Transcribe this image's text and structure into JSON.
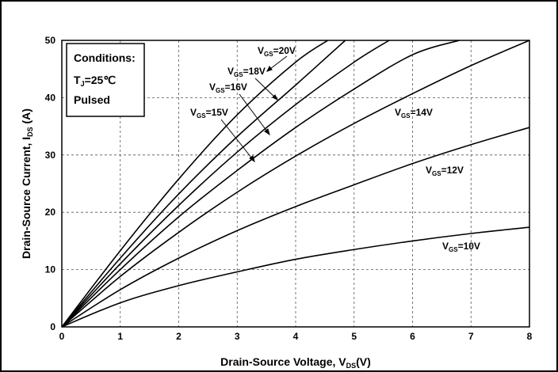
{
  "chart_data": {
    "type": "line",
    "title": "",
    "xlabel": "Drain-Source Voltage, V_DS(V)",
    "ylabel": "Drain-Source Current, I_DS (A)",
    "xlim": [
      0,
      8
    ],
    "ylim": [
      0,
      50
    ],
    "x_ticks": [
      0,
      1,
      2,
      3,
      4,
      5,
      6,
      7,
      8
    ],
    "y_ticks": [
      0,
      10,
      20,
      30,
      40,
      50
    ],
    "grid": true,
    "conditions": [
      "Conditions:",
      "T_J=25℃",
      "Pulsed"
    ],
    "series": [
      {
        "name": "V_GS=10V",
        "x": [
          0,
          1,
          2,
          3,
          4,
          5,
          6,
          7,
          8
        ],
        "y": [
          0,
          4.2,
          7.2,
          9.6,
          11.8,
          13.5,
          15.0,
          16.3,
          17.4
        ]
      },
      {
        "name": "V_GS=12V",
        "x": [
          0,
          1,
          2,
          3,
          4,
          5,
          6,
          7,
          8
        ],
        "y": [
          0,
          6.5,
          12.0,
          16.8,
          21.0,
          24.8,
          28.5,
          31.8,
          34.8
        ]
      },
      {
        "name": "V_GS=14V",
        "x": [
          0,
          1,
          2,
          3,
          4,
          5,
          6,
          7,
          8
        ],
        "y": [
          0,
          8.8,
          16.5,
          23.5,
          29.8,
          35.5,
          40.7,
          45.6,
          50.0
        ]
      },
      {
        "name": "V_GS=15V",
        "x": [
          0,
          1,
          2,
          3,
          4,
          5,
          6,
          6.8
        ],
        "y": [
          0,
          10.0,
          19.2,
          27.3,
          34.8,
          41.5,
          47.5,
          50.0
        ]
      },
      {
        "name": "V_GS=16V",
        "x": [
          0,
          1,
          2,
          3,
          4,
          5,
          5.6
        ],
        "y": [
          0,
          11.0,
          21.2,
          30.5,
          38.8,
          46.2,
          50.0
        ]
      },
      {
        "name": "V_GS=18V",
        "x": [
          0,
          1,
          2,
          3,
          4,
          4.85
        ],
        "y": [
          0,
          12.0,
          23.2,
          33.2,
          42.2,
          50.0
        ]
      },
      {
        "name": "V_GS=20V",
        "x": [
          0,
          1,
          2,
          3,
          4,
          4.55
        ],
        "y": [
          0,
          13.3,
          25.8,
          37.0,
          46.2,
          50.0
        ]
      }
    ]
  }
}
